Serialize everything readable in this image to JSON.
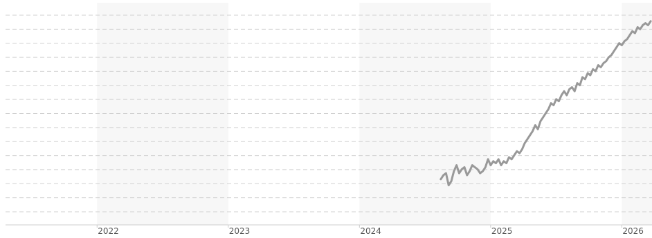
{
  "chart_data": {
    "type": "line",
    "title": "",
    "xlabel": "",
    "ylabel": "",
    "x_tick_labels": [
      "2022",
      "2023",
      "2024",
      "2025",
      "2026"
    ],
    "x_ticks": [
      2022,
      2023,
      2024,
      2025,
      2026
    ],
    "xlim": [
      2021.26,
      2026.23
    ],
    "ylim": [
      0,
      100
    ],
    "grid": true,
    "horizontal_gridlines": 15,
    "shaded_year_bands": [
      [
        2022,
        2023
      ],
      [
        2024,
        2025
      ],
      [
        2026,
        2026.23
      ]
    ],
    "series": [
      {
        "color": "#999999",
        "x": [
          2024.62,
          2024.64,
          2024.66,
          2024.68,
          2024.7,
          2024.72,
          2024.74,
          2024.76,
          2024.78,
          2024.8,
          2024.82,
          2024.84,
          2024.86,
          2024.88,
          2024.9,
          2024.92,
          2024.94,
          2024.96,
          2024.98,
          2025.0,
          2025.02,
          2025.04,
          2025.06,
          2025.08,
          2025.1,
          2025.12,
          2025.14,
          2025.16,
          2025.18,
          2025.2,
          2025.22,
          2025.24,
          2025.26,
          2025.28,
          2025.3,
          2025.32,
          2025.34,
          2025.36,
          2025.38,
          2025.4,
          2025.42,
          2025.44,
          2025.46,
          2025.48,
          2025.5,
          2025.52,
          2025.54,
          2025.56,
          2025.58,
          2025.6,
          2025.62,
          2025.64,
          2025.66,
          2025.68,
          2025.7,
          2025.72,
          2025.74,
          2025.76,
          2025.78,
          2025.8,
          2025.82,
          2025.84,
          2025.86,
          2025.88,
          2025.9,
          2025.92,
          2025.94,
          2025.96,
          2025.98,
          2026.0,
          2026.02,
          2026.04,
          2026.06,
          2026.08,
          2026.1,
          2026.12,
          2026.14,
          2026.16,
          2026.18,
          2026.2,
          2026.22
        ],
        "y": [
          18,
          20,
          21,
          15,
          17,
          22,
          25,
          21,
          23,
          24,
          20,
          22,
          25,
          24,
          23,
          21,
          22,
          24,
          28,
          25,
          27,
          26,
          28,
          25,
          27,
          26,
          29,
          28,
          30,
          32,
          31,
          33,
          36,
          38,
          40,
          42,
          45,
          43,
          47,
          49,
          51,
          53,
          56,
          55,
          58,
          57,
          60,
          62,
          60,
          63,
          64,
          62,
          66,
          65,
          69,
          68,
          71,
          70,
          73,
          72,
          75,
          74,
          76,
          77,
          79,
          80,
          82,
          84,
          86,
          85,
          87,
          88,
          90,
          92,
          91,
          94,
          93,
          95,
          96,
          95,
          97
        ]
      }
    ]
  }
}
